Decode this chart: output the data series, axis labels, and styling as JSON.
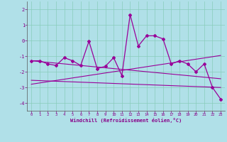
{
  "x": [
    0,
    1,
    2,
    3,
    4,
    5,
    6,
    7,
    8,
    9,
    10,
    11,
    12,
    13,
    14,
    15,
    16,
    17,
    18,
    19,
    20,
    21,
    22,
    23
  ],
  "y_main": [
    -1.3,
    -1.3,
    -1.5,
    -1.6,
    -1.1,
    -1.3,
    -1.6,
    -0.05,
    -1.8,
    -1.65,
    -1.1,
    -2.25,
    1.65,
    -0.35,
    0.3,
    0.3,
    0.1,
    -1.5,
    -1.3,
    -1.5,
    -2.0,
    -1.5,
    -3.0,
    -3.75
  ],
  "y_line1": [
    -1.3,
    -1.35,
    -1.4,
    -1.45,
    -1.5,
    -1.55,
    -1.6,
    -1.65,
    -1.7,
    -1.75,
    -1.8,
    -1.85,
    -1.9,
    -1.95,
    -2.0,
    -2.05,
    -2.1,
    -2.15,
    -2.2,
    -2.25,
    -2.3,
    -2.35,
    -2.4,
    -2.45
  ],
  "y_line2": [
    -2.8,
    -2.72,
    -2.64,
    -2.56,
    -2.48,
    -2.4,
    -2.32,
    -2.24,
    -2.16,
    -2.08,
    -2.0,
    -1.92,
    -1.84,
    -1.76,
    -1.68,
    -1.6,
    -1.52,
    -1.44,
    -1.36,
    -1.28,
    -1.2,
    -1.12,
    -1.04,
    -0.96
  ],
  "y_line3": [
    -2.55,
    -2.57,
    -2.59,
    -2.61,
    -2.63,
    -2.65,
    -2.67,
    -2.69,
    -2.71,
    -2.73,
    -2.75,
    -2.77,
    -2.79,
    -2.81,
    -2.83,
    -2.85,
    -2.87,
    -2.89,
    -2.91,
    -2.93,
    -2.95,
    -2.97,
    -2.99,
    -3.01
  ],
  "ylim": [
    -4.5,
    2.5
  ],
  "xlim": [
    -0.5,
    23.5
  ],
  "yticks": [
    -4,
    -3,
    -2,
    -1,
    0,
    1,
    2
  ],
  "xticks": [
    0,
    1,
    2,
    3,
    4,
    5,
    6,
    7,
    8,
    9,
    10,
    11,
    12,
    13,
    14,
    15,
    16,
    17,
    18,
    19,
    20,
    21,
    22,
    23
  ],
  "xlabel": "Windchill (Refroidissement éolien,°C)",
  "line_color": "#990099",
  "bg_color": "#b0e0e8",
  "grid_color": "#88ccbb",
  "tick_label_color": "#880088",
  "xlabel_color": "#880088",
  "axis_color": "#555555"
}
